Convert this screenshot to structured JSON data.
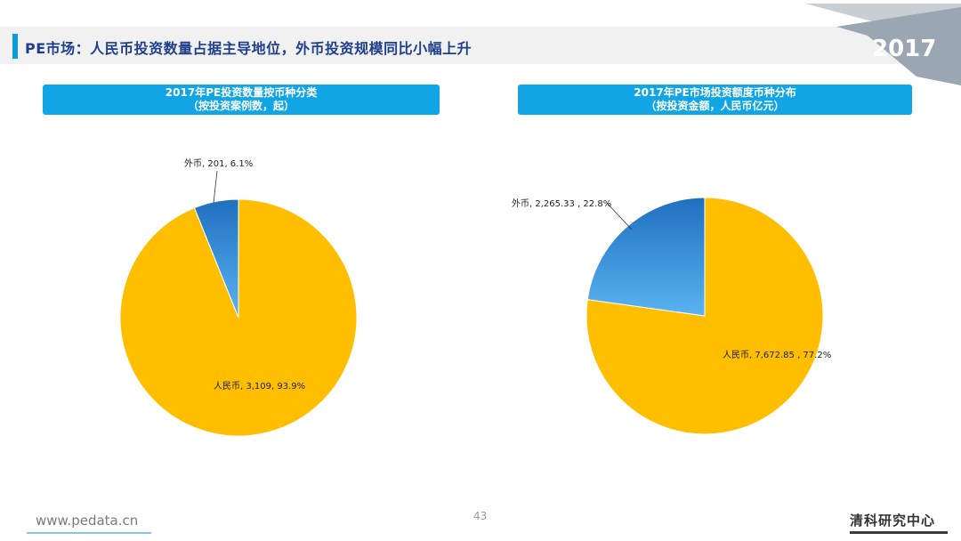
{
  "page": {
    "title": "PE市场：人民币投资数量占据主导地位，外币投资规模同比小幅上升",
    "year": "2017",
    "footer_url": "www.pedata.cn",
    "page_number": "43",
    "brand": "清科研究中心"
  },
  "colors": {
    "rmb": "#ffbf00",
    "foreign": "#2a86d6",
    "header": "#12a5e6",
    "title": "#1f3f8c"
  },
  "chart_data": [
    {
      "type": "pie",
      "title": "2017年PE投资数量按币种分类",
      "subtitle": "（按投资案例数，起）",
      "slices": [
        {
          "name": "人民币",
          "value": 3109,
          "percent": 93.9,
          "label": "人民币, 3,109, 93.9%"
        },
        {
          "name": "外币",
          "value": 201,
          "percent": 6.1,
          "label": "外币, 201, 6.1%"
        }
      ]
    },
    {
      "type": "pie",
      "title": "2017年PE市场投资额度币种分布",
      "subtitle": "（按投资金额，人民币亿元）",
      "slices": [
        {
          "name": "人民币",
          "value": 7672.85,
          "percent": 77.2,
          "label": "人民币, 7,672.85 , 77.2%"
        },
        {
          "name": "外币",
          "value": 2265.33,
          "percent": 22.8,
          "label": "外币, 2,265.33 , 22.8%"
        }
      ]
    }
  ]
}
